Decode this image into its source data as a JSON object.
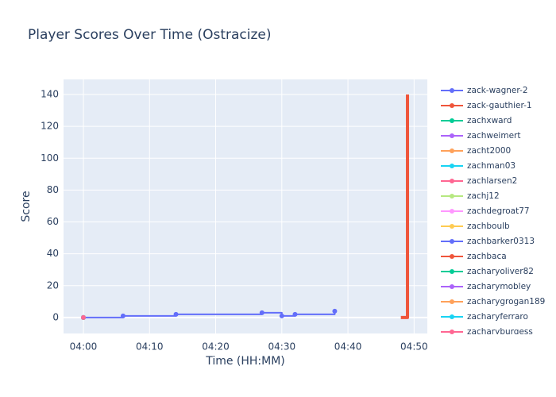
{
  "chart_data": {
    "type": "line",
    "title": "Player Scores Over Time (Ostracize)",
    "x_label": "Time (HH:MM)",
    "y_label": "Score",
    "xlim": [
      "03:57",
      "04:52"
    ],
    "xticks": [
      "04:00",
      "04:10",
      "04:20",
      "04:30",
      "04:40",
      "04:50"
    ],
    "ylim": [
      -10,
      149.5
    ],
    "yticks": [
      0,
      20,
      40,
      60,
      80,
      100,
      120,
      140
    ],
    "grid": true,
    "line_shape": "hv",
    "legend": "right",
    "series": [
      {
        "name": "zack-wagner-2",
        "color": "#636efa",
        "x": [
          "04:00",
          "04:06",
          "04:14",
          "04:27",
          "04:30",
          "04:32",
          "04:38"
        ],
        "values": [
          0,
          1,
          2,
          3,
          1,
          2,
          4
        ]
      },
      {
        "name": "zack-gauthier-1",
        "color": "#ef553b",
        "x": [
          "04:48",
          "04:49"
        ],
        "values": [
          0,
          140
        ]
      },
      {
        "name": "zachxward",
        "color": "#00cc96",
        "x": [
          "04:00"
        ],
        "values": [
          0
        ]
      },
      {
        "name": "zachweimert",
        "color": "#ab63fa",
        "x": [
          "04:00"
        ],
        "values": [
          0
        ]
      },
      {
        "name": "zacht2000",
        "color": "#ffa15a",
        "x": [
          "04:00"
        ],
        "values": [
          0
        ]
      },
      {
        "name": "zachman03",
        "color": "#19d3f3",
        "x": [
          "04:00"
        ],
        "values": [
          0
        ]
      },
      {
        "name": "zachlarsen2",
        "color": "#ff6692",
        "x": [
          "04:00"
        ],
        "values": [
          0
        ]
      },
      {
        "name": "zachj12",
        "color": "#b6e880",
        "x": [
          "04:00"
        ],
        "values": [
          0
        ]
      },
      {
        "name": "zachdegroat77",
        "color": "#ff97ff",
        "x": [
          "04:00"
        ],
        "values": [
          0
        ]
      },
      {
        "name": "zachboulb",
        "color": "#fecb52",
        "x": [
          "04:00"
        ],
        "values": [
          0
        ]
      },
      {
        "name": "zachbarker0313",
        "color": "#636efa",
        "x": [
          "04:00"
        ],
        "values": [
          0
        ]
      },
      {
        "name": "zachbaca",
        "color": "#ef553b",
        "x": [
          "04:00"
        ],
        "values": [
          0
        ]
      },
      {
        "name": "zacharyoliver82",
        "color": "#00cc96",
        "x": [
          "04:00"
        ],
        "values": [
          0
        ]
      },
      {
        "name": "zacharymobley",
        "color": "#ab63fa",
        "x": [
          "04:00"
        ],
        "values": [
          0
        ]
      },
      {
        "name": "zacharygrogan189",
        "color": "#ffa15a",
        "x": [
          "04:00"
        ],
        "values": [
          0
        ]
      },
      {
        "name": "zacharyferraro",
        "color": "#19d3f3",
        "x": [
          "04:00"
        ],
        "values": [
          0
        ]
      },
      {
        "name": "zacharyburgess",
        "color": "#ff6692",
        "x": [
          "04:00"
        ],
        "values": [
          0
        ]
      }
    ]
  }
}
